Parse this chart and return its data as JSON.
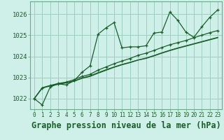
{
  "background_color": "#cff0e8",
  "plot_bg_color": "#cff0e8",
  "grid_color": "#9ecfbe",
  "line_color": "#1a5e2a",
  "xlabel": "Graphe pression niveau de la mer (hPa)",
  "xlabel_fontsize": 8.5,
  "ylim": [
    1021.5,
    1026.6
  ],
  "xlim": [
    -0.5,
    23.5
  ],
  "yticks": [
    1022,
    1023,
    1024,
    1025,
    1026
  ],
  "xticks": [
    0,
    1,
    2,
    3,
    4,
    5,
    6,
    7,
    8,
    9,
    10,
    11,
    12,
    13,
    14,
    15,
    16,
    17,
    18,
    19,
    20,
    21,
    22,
    23
  ],
  "series1": [
    1022.0,
    1021.7,
    1022.55,
    1022.7,
    1022.65,
    1022.85,
    1023.25,
    1023.55,
    1025.05,
    1025.35,
    1025.6,
    1024.4,
    1024.45,
    1024.45,
    1024.5,
    1025.1,
    1025.15,
    1026.1,
    1025.7,
    1025.15,
    1024.9,
    1025.4,
    1025.85,
    1026.2
  ],
  "series2": [
    1022.0,
    1022.5,
    1022.62,
    1022.72,
    1022.78,
    1022.9,
    1023.05,
    1023.15,
    1023.35,
    1023.5,
    1023.65,
    1023.78,
    1023.9,
    1024.05,
    1024.15,
    1024.28,
    1024.42,
    1024.55,
    1024.65,
    1024.75,
    1024.88,
    1025.0,
    1025.12,
    1025.22
  ],
  "series3": [
    1022.0,
    1022.5,
    1022.6,
    1022.68,
    1022.74,
    1022.82,
    1022.96,
    1023.05,
    1023.2,
    1023.34,
    1023.48,
    1023.6,
    1023.7,
    1023.82,
    1023.9,
    1024.02,
    1024.15,
    1024.27,
    1024.38,
    1024.48,
    1024.58,
    1024.68,
    1024.78,
    1024.88
  ],
  "series4": [
    1022.0,
    1022.52,
    1022.62,
    1022.7,
    1022.76,
    1022.84,
    1022.98,
    1023.08,
    1023.23,
    1023.37,
    1023.5,
    1023.62,
    1023.72,
    1023.83,
    1023.92,
    1024.04,
    1024.17,
    1024.29,
    1024.4,
    1024.5,
    1024.6,
    1024.7,
    1024.8,
    1024.9
  ]
}
